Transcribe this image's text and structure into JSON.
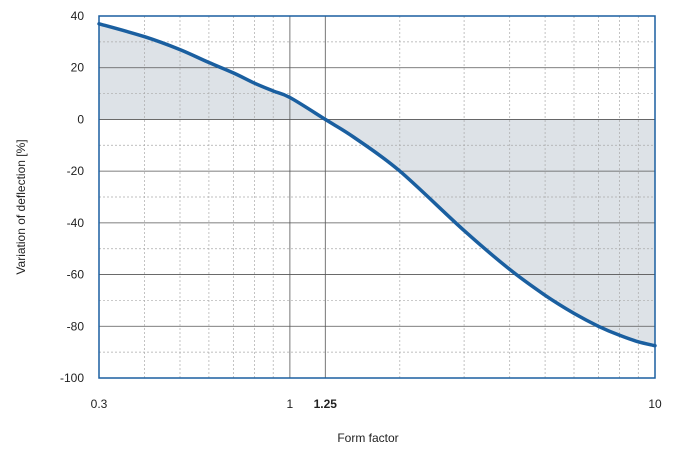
{
  "chart_data": {
    "type": "line",
    "xlabel": "Form factor",
    "ylabel": "Variation of deflection [%]",
    "x_scale": "log",
    "xlim": [
      0.3,
      10
    ],
    "ylim": [
      -100,
      40
    ],
    "x_ticks": [
      {
        "value": 0.3,
        "label": "0.3",
        "bold": false
      },
      {
        "value": 1,
        "label": "1",
        "bold": false
      },
      {
        "value": 1.25,
        "label": "1.25",
        "bold": true
      },
      {
        "value": 10,
        "label": "10",
        "bold": false
      }
    ],
    "y_ticks": [
      40,
      20,
      0,
      -20,
      -40,
      -60,
      -80,
      -100
    ],
    "y_minor_step": 10,
    "x_minor_grid": [
      0.4,
      0.5,
      0.6,
      0.7,
      0.8,
      0.9,
      2,
      3,
      4,
      5,
      6,
      7,
      8,
      9
    ],
    "x_major_grid": [
      1,
      1.25
    ],
    "grid": true,
    "fill_to_zero": true,
    "series": [
      {
        "color": "#1a5fa0",
        "fill_color": "#dde2e7",
        "x": [
          0.3,
          0.4,
          0.5,
          0.6,
          0.7,
          0.8,
          0.9,
          1.0,
          1.25,
          1.5,
          2,
          3,
          4,
          5,
          6,
          7,
          8,
          9,
          10
        ],
        "y": [
          37,
          32,
          27,
          22,
          18,
          14,
          11,
          8.5,
          0,
          -7,
          -20,
          -43,
          -58,
          -68,
          -75,
          -80,
          -83.5,
          -86,
          -87.5
        ]
      }
    ]
  }
}
